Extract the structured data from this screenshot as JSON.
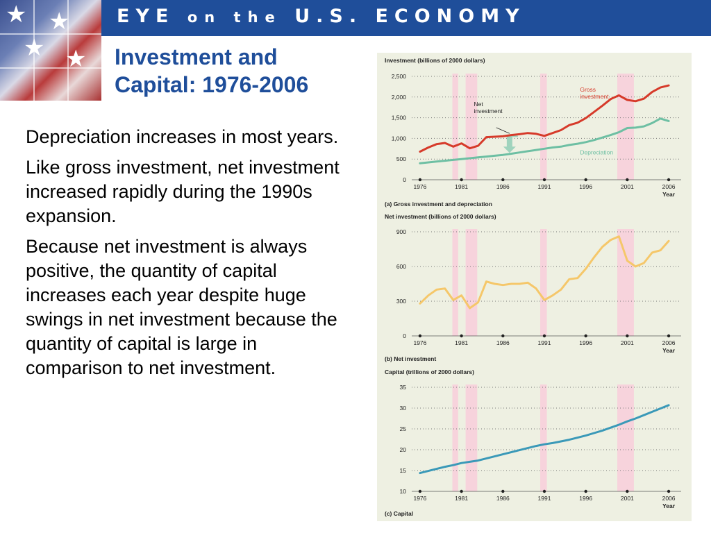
{
  "banner": {
    "eye": "EYE",
    "on_the": "on the",
    "us_economy": "U.S. ECONOMY"
  },
  "slide": {
    "title_line1": "Investment and",
    "title_line2": "Capital: 1976-2006",
    "paragraphs": [
      "Depreciation increases in most years.",
      "Like gross investment, net investment increased rapidly during the 1990s expansion.",
      "Because net investment is always positive, the quantity of capital increases each year despite huge swings in net investment because the quantity of capital is large in comparison to net investment."
    ]
  },
  "colors": {
    "brand_blue": "#1f4e9a",
    "panel_bg": "#eef0e2",
    "recession_band": "#f7d3dc",
    "gross_investment": "#d63a2a",
    "depreciation": "#6dbfa3",
    "net_investment_arrow": "#9fd3bd",
    "net_investment": "#f5c76a",
    "capital": "#3a99b8"
  },
  "chart_data": [
    {
      "type": "line",
      "id": "a",
      "title": "(a) Gross investment and depreciation",
      "ylabel": "Investment (billions of 2000 dollars)",
      "xlabel": "Year",
      "xlim": [
        1975,
        2007
      ],
      "ylim": [
        0,
        2500
      ],
      "yticks": [
        "0",
        "500",
        "1,000",
        "1,500",
        "2,000",
        "2,500"
      ],
      "ytick_values": [
        0,
        500,
        1000,
        1500,
        2000,
        2500
      ],
      "xticks": [
        "1976",
        "1981",
        "1986",
        "1991",
        "1996",
        "2001",
        "2006"
      ],
      "xtick_values": [
        1976,
        1981,
        1986,
        1991,
        1996,
        2001,
        2006
      ],
      "recessions": [
        [
          1979.9,
          1980.6
        ],
        [
          1981.5,
          1982.9
        ],
        [
          1990.5,
          1991.3
        ],
        [
          1999.8,
          2001.8
        ]
      ],
      "annotations": [
        "Net investment"
      ],
      "series": [
        {
          "name": "Gross investment",
          "color_key": "gross_investment",
          "x": [
            1976,
            1977,
            1978,
            1979,
            1980,
            1981,
            1982,
            1983,
            1984,
            1985,
            1986,
            1987,
            1988,
            1989,
            1990,
            1991,
            1992,
            1993,
            1994,
            1995,
            1996,
            1997,
            1998,
            1999,
            2000,
            2001,
            2002,
            2003,
            2004,
            2005,
            2006
          ],
          "y": [
            680,
            780,
            860,
            890,
            800,
            880,
            760,
            820,
            1030,
            1040,
            1050,
            1080,
            1100,
            1130,
            1110,
            1060,
            1130,
            1200,
            1320,
            1380,
            1490,
            1640,
            1790,
            1950,
            2040,
            1930,
            1900,
            1960,
            2120,
            2230,
            2280
          ]
        },
        {
          "name": "Depreciation",
          "color_key": "depreciation",
          "x": [
            1976,
            1977,
            1978,
            1979,
            1980,
            1981,
            1982,
            1983,
            1984,
            1985,
            1986,
            1987,
            1988,
            1989,
            1990,
            1991,
            1992,
            1993,
            1994,
            1995,
            1996,
            1997,
            1998,
            1999,
            2000,
            2001,
            2002,
            2003,
            2004,
            2005,
            2006
          ],
          "y": [
            400,
            420,
            440,
            460,
            480,
            500,
            520,
            540,
            560,
            580,
            600,
            630,
            660,
            690,
            720,
            750,
            780,
            800,
            840,
            870,
            910,
            960,
            1020,
            1080,
            1150,
            1250,
            1260,
            1290,
            1370,
            1480,
            1420
          ]
        }
      ]
    },
    {
      "type": "line",
      "id": "b",
      "title": "(b) Net investment",
      "ylabel": "Net investment (billions of 2000 dollars)",
      "xlabel": "Year",
      "xlim": [
        1975,
        2007
      ],
      "ylim": [
        0,
        900
      ],
      "yticks": [
        "0",
        "300",
        "600",
        "900"
      ],
      "ytick_values": [
        0,
        300,
        600,
        900
      ],
      "xticks": [
        "1976",
        "1981",
        "1986",
        "1991",
        "1996",
        "2001",
        "2006"
      ],
      "xtick_values": [
        1976,
        1981,
        1986,
        1991,
        1996,
        2001,
        2006
      ],
      "recessions": [
        [
          1979.9,
          1980.6
        ],
        [
          1981.5,
          1982.9
        ],
        [
          1990.5,
          1991.3
        ],
        [
          1999.8,
          2001.8
        ]
      ],
      "series": [
        {
          "name": "Net investment",
          "color_key": "net_investment",
          "x": [
            1976,
            1977,
            1978,
            1979,
            1980,
            1981,
            1982,
            1983,
            1984,
            1985,
            1986,
            1987,
            1988,
            1989,
            1990,
            1991,
            1992,
            1993,
            1994,
            1995,
            1996,
            1997,
            1998,
            1999,
            2000,
            2001,
            2002,
            2003,
            2004,
            2005,
            2006
          ],
          "y": [
            280,
            350,
            400,
            410,
            310,
            350,
            240,
            290,
            470,
            450,
            440,
            450,
            450,
            460,
            410,
            310,
            350,
            400,
            490,
            500,
            580,
            680,
            770,
            830,
            860,
            650,
            600,
            630,
            720,
            740,
            820
          ]
        }
      ]
    },
    {
      "type": "line",
      "id": "c",
      "title": "(c) Capital",
      "ylabel": "Capital (trillions of 2000 dollars)",
      "xlabel": "Year",
      "xlim": [
        1975,
        2007
      ],
      "ylim": [
        10,
        35
      ],
      "yticks": [
        "10",
        "15",
        "20",
        "25",
        "30",
        "35"
      ],
      "ytick_values": [
        10,
        15,
        20,
        25,
        30,
        35
      ],
      "xticks": [
        "1976",
        "1981",
        "1986",
        "1991",
        "1996",
        "2001",
        "2006"
      ],
      "xtick_values": [
        1976,
        1981,
        1986,
        1991,
        1996,
        2001,
        2006
      ],
      "recessions": [
        [
          1979.9,
          1980.6
        ],
        [
          1981.5,
          1982.9
        ],
        [
          1990.5,
          1991.3
        ],
        [
          1999.8,
          2001.8
        ]
      ],
      "series": [
        {
          "name": "Capital",
          "color_key": "capital",
          "x": [
            1976,
            1977,
            1978,
            1979,
            1980,
            1981,
            1982,
            1983,
            1984,
            1985,
            1986,
            1987,
            1988,
            1989,
            1990,
            1991,
            1992,
            1993,
            1994,
            1995,
            1996,
            1997,
            1998,
            1999,
            2000,
            2001,
            2002,
            2003,
            2004,
            2005,
            2006
          ],
          "y": [
            14.4,
            14.9,
            15.4,
            15.9,
            16.3,
            16.8,
            17.1,
            17.4,
            17.9,
            18.4,
            18.9,
            19.4,
            19.9,
            20.4,
            20.9,
            21.3,
            21.6,
            22.0,
            22.4,
            22.9,
            23.4,
            24.0,
            24.6,
            25.3,
            26.0,
            26.8,
            27.5,
            28.3,
            29.1,
            29.9,
            30.7
          ]
        }
      ]
    }
  ]
}
